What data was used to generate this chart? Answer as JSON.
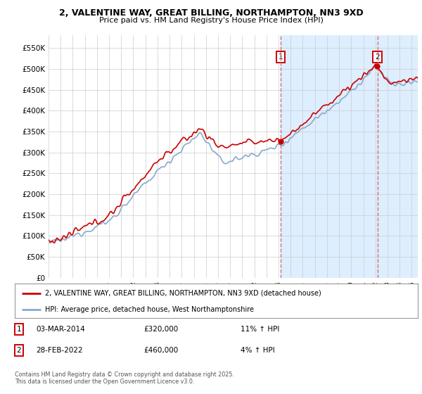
{
  "title_line1": "2, VALENTINE WAY, GREAT BILLING, NORTHAMPTON, NN3 9XD",
  "title_line2": "Price paid vs. HM Land Registry's House Price Index (HPI)",
  "ytick_values": [
    0,
    50000,
    100000,
    150000,
    200000,
    250000,
    300000,
    350000,
    400000,
    450000,
    500000,
    550000
  ],
  "ylim": [
    0,
    580000
  ],
  "xlim_start": 1995.0,
  "xlim_end": 2025.5,
  "marker1_date": 2014.17,
  "marker2_date": 2022.17,
  "legend_line1": "2, VALENTINE WAY, GREAT BILLING, NORTHAMPTON, NN3 9XD (detached house)",
  "legend_line2": "HPI: Average price, detached house, West Northamptonshire",
  "ann1_date": "03-MAR-2014",
  "ann1_price": "£320,000",
  "ann1_hpi": "11% ↑ HPI",
  "ann2_date": "28-FEB-2022",
  "ann2_price": "£460,000",
  "ann2_hpi": "4% ↑ HPI",
  "footer": "Contains HM Land Registry data © Crown copyright and database right 2025.\nThis data is licensed under the Open Government Licence v3.0.",
  "line_color_red": "#cc0000",
  "line_color_blue": "#88aacc",
  "shade_color": "#ddeeff",
  "marker_dashed_color": "#cc6666",
  "background_color": "#ffffff",
  "grid_color": "#cccccc",
  "box_color": "#cc0000"
}
